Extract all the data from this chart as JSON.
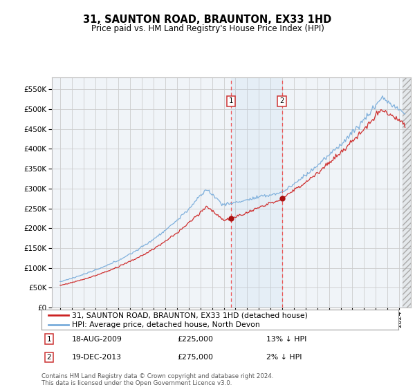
{
  "title": "31, SAUNTON ROAD, BRAUNTON, EX33 1HD",
  "subtitle": "Price paid vs. HM Land Registry's House Price Index (HPI)",
  "footer": "Contains HM Land Registry data © Crown copyright and database right 2024.\nThis data is licensed under the Open Government Licence v3.0.",
  "legend_line1": "31, SAUNTON ROAD, BRAUNTON, EX33 1HD (detached house)",
  "legend_line2": "HPI: Average price, detached house, North Devon",
  "transaction1_date": "18-AUG-2009",
  "transaction1_price": "£225,000",
  "transaction1_hpi": "13% ↓ HPI",
  "transaction2_date": "19-DEC-2013",
  "transaction2_price": "£275,000",
  "transaction2_hpi": "2% ↓ HPI",
  "hpi_color": "#7aaddb",
  "sale_color": "#cc2222",
  "marker_color": "#aa1111",
  "ylim_min": 0,
  "ylim_max": 580000,
  "yticks": [
    0,
    50000,
    100000,
    150000,
    200000,
    250000,
    300000,
    350000,
    400000,
    450000,
    500000,
    550000
  ],
  "background_color": "#f0f4f8",
  "grid_color": "#cccccc",
  "transaction1_x": 2009.63,
  "transaction1_y": 225000,
  "transaction2_x": 2013.97,
  "transaction2_y": 275000,
  "xlim_min": 1994.3,
  "xlim_max": 2025.0
}
